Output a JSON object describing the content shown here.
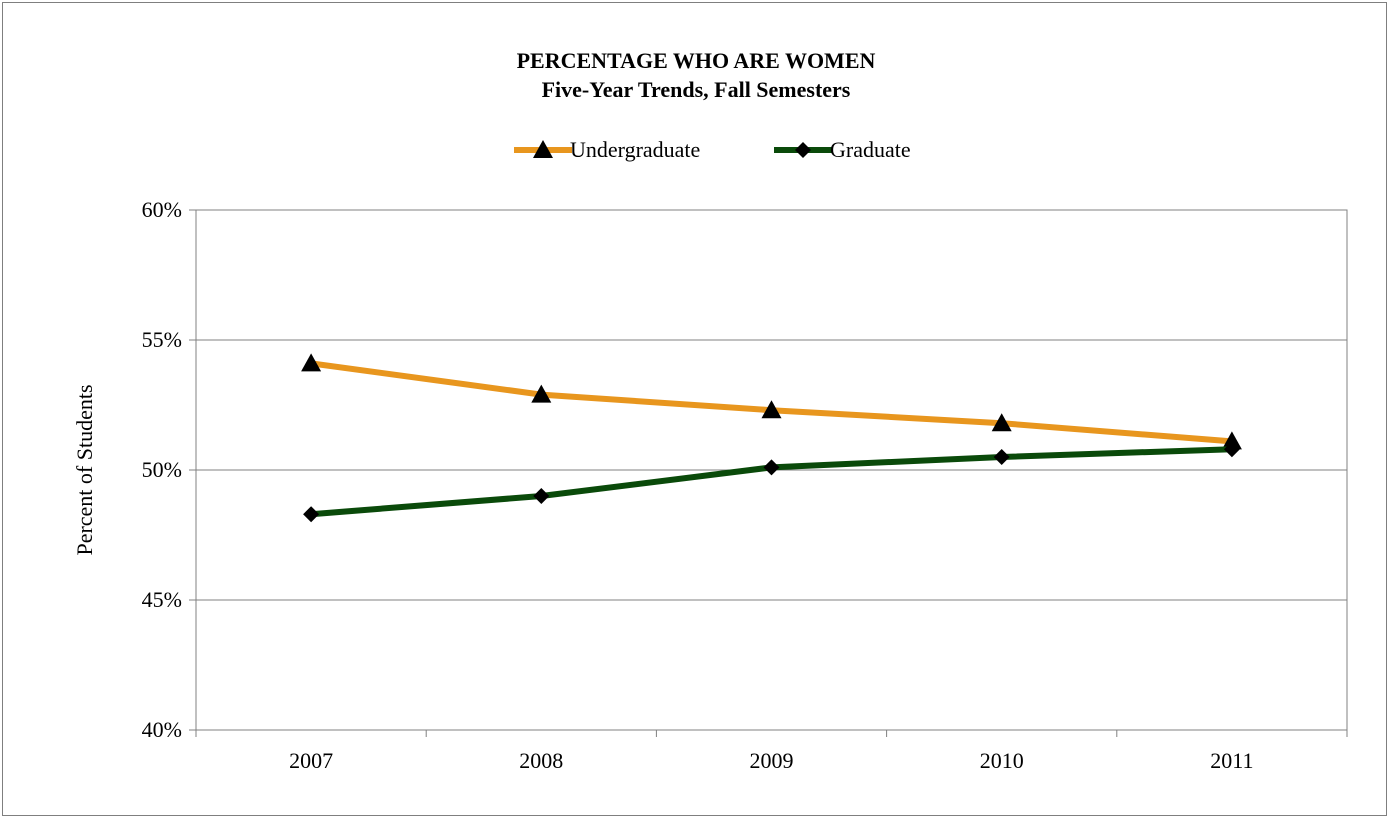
{
  "chart_data": {
    "type": "line",
    "title": "PERCENTAGE WHO ARE WOMEN",
    "subtitle": "Five-Year Trends, Fall Semesters",
    "xlabel": "",
    "ylabel": "Percent of Students",
    "categories": [
      "2007",
      "2008",
      "2009",
      "2010",
      "2011"
    ],
    "ylim": [
      40,
      60
    ],
    "y_ticks": [
      40,
      45,
      50,
      55,
      60
    ],
    "y_tick_labels": [
      "40%",
      "45%",
      "50%",
      "55%",
      "60%"
    ],
    "grid": true,
    "legend_position": "top",
    "series": [
      {
        "name": "Undergraduate",
        "color": "#e8961e",
        "marker": "triangle",
        "values": [
          54.1,
          52.9,
          52.3,
          51.8,
          51.1
        ]
      },
      {
        "name": "Graduate",
        "color": "#0a4a0a",
        "marker": "diamond",
        "values": [
          48.3,
          49.0,
          50.1,
          50.5,
          50.8
        ]
      }
    ]
  }
}
